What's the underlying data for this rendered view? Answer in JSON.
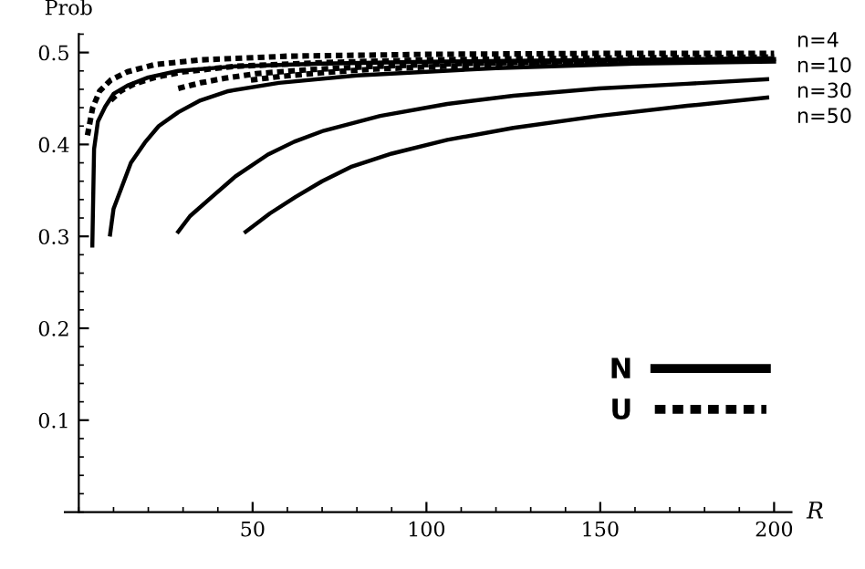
{
  "chart_data": {
    "type": "line",
    "xlabel": "R",
    "ylabel": "Prob",
    "xlim": [
      -4,
      205
    ],
    "ylim": [
      0,
      0.52
    ],
    "xticks": [
      50,
      100,
      150,
      200
    ],
    "yticks": [
      0.1,
      0.2,
      0.3,
      0.4,
      0.5
    ],
    "grid": false,
    "legend": "bottom right",
    "marker": "none",
    "series": [
      {
        "name": "N",
        "color": "#000000",
        "line_style": "solid",
        "x": [
          3.9,
          4.4,
          5.5,
          7.6,
          10,
          14,
          20,
          28.6,
          45,
          70,
          100,
          150,
          200
        ],
        "values": [
          0.29,
          0.395,
          0.425,
          0.441,
          0.455,
          0.464,
          0.473,
          0.48,
          0.485,
          0.488,
          0.49,
          0.492,
          0.493
        ]
      },
      {
        "color": "#000000",
        "line_style": "solid",
        "x": [
          9,
          10,
          12.6,
          15,
          19,
          23,
          28.6,
          35,
          43,
          57.6,
          80,
          120,
          160,
          200
        ],
        "values": [
          0.302,
          0.33,
          0.356,
          0.38,
          0.402,
          0.42,
          0.435,
          0.448,
          0.458,
          0.467,
          0.475,
          0.483,
          0.488,
          0.49
        ]
      },
      {
        "color": "#000000",
        "line_style": "solid",
        "x": [
          28.6,
          32,
          38.3,
          45,
          54.4,
          62,
          70.5,
          86.7,
          106,
          125,
          149.6,
          175,
          198
        ],
        "values": [
          0.305,
          0.322,
          0.343,
          0.365,
          0.389,
          0.403,
          0.415,
          0.431,
          0.444,
          0.453,
          0.461,
          0.466,
          0.471
        ]
      },
      {
        "color": "#000000",
        "line_style": "solid",
        "x": [
          48,
          55,
          62.4,
          70,
          78.6,
          90,
          106,
          125,
          149.6,
          175,
          198
        ],
        "values": [
          0.305,
          0.325,
          0.343,
          0.36,
          0.376,
          0.39,
          0.405,
          0.418,
          0.431,
          0.442,
          0.451
        ]
      },
      {
        "name": "U",
        "color": "#000000",
        "line_style": "dotted",
        "x": [
          2.5,
          4,
          6,
          9.2,
          14,
          22,
          35,
          60,
          100,
          150,
          200
        ],
        "values": [
          0.41,
          0.44,
          0.458,
          0.47,
          0.479,
          0.487,
          0.492,
          0.496,
          0.498,
          0.499,
          0.499
        ]
      },
      {
        "color": "#000000",
        "line_style": "dotted",
        "x": [
          9.2,
          12,
          16,
          22,
          30,
          45,
          70,
          100,
          150,
          200
        ],
        "values": [
          0.448,
          0.458,
          0.466,
          0.473,
          0.479,
          0.485,
          0.489,
          0.492,
          0.494,
          0.495
        ]
      },
      {
        "color": "#000000",
        "line_style": "dotted",
        "x": [
          28.6,
          35,
          42,
          51,
          65,
          85,
          110,
          150,
          200
        ],
        "values": [
          0.461,
          0.467,
          0.472,
          0.477,
          0.481,
          0.485,
          0.488,
          0.491,
          0.493
        ]
      },
      {
        "color": "#000000",
        "line_style": "dotted",
        "x": [
          49.5,
          58,
          70,
          85,
          105,
          130,
          160,
          200
        ],
        "values": [
          0.47,
          0.474,
          0.478,
          0.482,
          0.485,
          0.488,
          0.49,
          0.492
        ]
      }
    ],
    "annotations": [
      "n=4",
      "n=10",
      "n=30",
      "n=50"
    ]
  }
}
